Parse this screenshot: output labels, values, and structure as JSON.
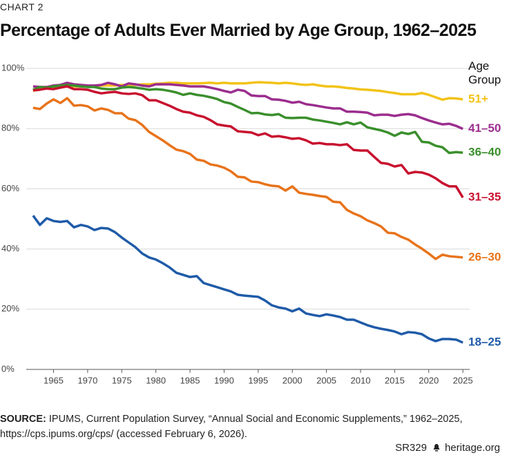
{
  "notes": {
    "kicker": "CHART 2",
    "source_label": "SOURCE:",
    "source_text": "IPUMS, Current Population Survey, “Annual Social and Economic Supplements,” 1962–2025, https://cps.ipums.org/cps/ (accessed February 6, 2026).",
    "code": "SR329",
    "site": "heritage.org"
  },
  "chart_data": {
    "type": "line",
    "title": "Percentage of Adults Ever Married by Age Group, 1962–2025",
    "legend_title": "Age Group",
    "x": [
      1962,
      1963,
      1964,
      1965,
      1966,
      1967,
      1968,
      1969,
      1970,
      1971,
      1972,
      1973,
      1974,
      1975,
      1976,
      1977,
      1978,
      1979,
      1980,
      1981,
      1982,
      1983,
      1984,
      1985,
      1986,
      1987,
      1988,
      1989,
      1990,
      1991,
      1992,
      1993,
      1994,
      1995,
      1996,
      1997,
      1998,
      1999,
      2000,
      2001,
      2002,
      2003,
      2004,
      2005,
      2006,
      2007,
      2008,
      2009,
      2010,
      2011,
      2012,
      2013,
      2014,
      2015,
      2016,
      2017,
      2018,
      2019,
      2020,
      2021,
      2022,
      2023,
      2024,
      2025
    ],
    "xlim": [
      1961,
      2026
    ],
    "xticks": [
      1965,
      1970,
      1975,
      1980,
      1985,
      1990,
      1995,
      2000,
      2005,
      2010,
      2015,
      2020,
      2025
    ],
    "ylim": [
      0,
      100
    ],
    "yticks": [
      {
        "value": 0,
        "label": "0%"
      },
      {
        "value": 20,
        "label": "20%"
      },
      {
        "value": 40,
        "label": "40%"
      },
      {
        "value": 60,
        "label": "60%"
      },
      {
        "value": 80,
        "label": "80%"
      },
      {
        "value": 100,
        "label": "100%"
      }
    ],
    "grid": true,
    "series": [
      {
        "name": "51+",
        "color": "#f2c318",
        "values": [
          92.5,
          93.1,
          93.6,
          93.8,
          94.0,
          94.0,
          94.0,
          94.0,
          94.0,
          94.0,
          94.3,
          94.3,
          94.3,
          94.5,
          94.5,
          94.5,
          94.7,
          94.7,
          94.9,
          95.0,
          95.2,
          95.2,
          95.0,
          95.0,
          95.0,
          95.1,
          95.2,
          95.0,
          95.2,
          95.0,
          95.0,
          95.0,
          95.2,
          95.4,
          95.3,
          95.2,
          95.0,
          95.2,
          95.0,
          94.7,
          94.5,
          94.7,
          94.3,
          94.0,
          94.0,
          93.8,
          93.5,
          93.3,
          93.0,
          92.9,
          92.7,
          92.5,
          92.1,
          91.8,
          91.4,
          91.4,
          91.4,
          91.8,
          91.2,
          90.4,
          89.6,
          90.1,
          90.0,
          89.7
        ]
      },
      {
        "name": "41–50",
        "color": "#9b2d8e",
        "values": [
          94.0,
          93.8,
          93.8,
          94.3,
          94.5,
          95.2,
          94.7,
          94.5,
          94.3,
          94.3,
          94.5,
          95.2,
          94.7,
          94.0,
          95.0,
          94.7,
          94.3,
          94.0,
          94.7,
          94.7,
          94.7,
          94.5,
          94.3,
          94.0,
          94.0,
          94.0,
          93.6,
          93.1,
          92.5,
          92.0,
          92.9,
          92.5,
          91.0,
          90.8,
          90.8,
          89.7,
          89.6,
          89.2,
          88.6,
          88.9,
          88.1,
          87.8,
          87.4,
          87.0,
          86.7,
          86.7,
          85.6,
          85.6,
          85.5,
          85.3,
          84.4,
          84.6,
          84.6,
          84.2,
          84.6,
          84.8,
          84.4,
          83.5,
          82.7,
          82.0,
          81.4,
          81.6,
          80.9,
          79.9
        ]
      },
      {
        "name": "36–40",
        "color": "#3a8f2c",
        "values": [
          92.9,
          93.8,
          93.6,
          94.0,
          94.3,
          94.5,
          94.3,
          94.0,
          93.8,
          93.8,
          93.3,
          93.1,
          93.1,
          93.6,
          93.8,
          93.6,
          93.3,
          92.9,
          93.1,
          92.9,
          92.5,
          92.0,
          91.2,
          91.7,
          91.2,
          90.9,
          90.4,
          89.8,
          88.8,
          88.3,
          87.2,
          86.2,
          85.1,
          85.2,
          84.7,
          84.5,
          84.8,
          83.6,
          83.5,
          83.6,
          83.6,
          83.0,
          82.7,
          82.3,
          81.9,
          81.4,
          82.1,
          81.4,
          82.0,
          80.4,
          79.9,
          79.4,
          78.7,
          77.6,
          78.7,
          78.2,
          78.9,
          75.6,
          75.4,
          74.3,
          73.8,
          71.9,
          72.2,
          72.0
        ]
      },
      {
        "name": "31–35",
        "color": "#c8102e",
        "values": [
          92.7,
          92.9,
          93.3,
          93.1,
          93.6,
          94.0,
          93.1,
          93.1,
          92.9,
          92.2,
          91.7,
          92.0,
          92.2,
          91.7,
          91.5,
          91.7,
          91.1,
          89.4,
          89.4,
          88.5,
          87.6,
          86.5,
          85.6,
          85.3,
          84.4,
          83.9,
          82.8,
          81.4,
          81.0,
          80.7,
          79.1,
          78.9,
          78.7,
          77.8,
          78.4,
          77.3,
          77.5,
          77.1,
          76.6,
          76.8,
          76.1,
          75.0,
          75.2,
          74.8,
          74.8,
          74.5,
          74.8,
          72.9,
          72.7,
          72.7,
          70.6,
          68.6,
          68.3,
          67.4,
          67.9,
          65.1,
          65.6,
          65.4,
          64.7,
          63.5,
          61.9,
          60.8,
          60.8,
          57.1
        ]
      },
      {
        "name": "26–30",
        "color": "#e8731a",
        "values": [
          86.9,
          86.5,
          88.3,
          89.7,
          88.5,
          90.1,
          87.6,
          87.8,
          87.4,
          86.0,
          86.7,
          86.2,
          85.1,
          85.1,
          83.3,
          82.8,
          81.2,
          78.9,
          77.5,
          76.1,
          74.5,
          73.0,
          72.5,
          71.6,
          69.7,
          69.3,
          68.1,
          67.7,
          67.0,
          65.8,
          64.0,
          63.8,
          62.4,
          62.2,
          61.5,
          61.0,
          60.8,
          59.4,
          60.8,
          58.7,
          58.3,
          58.0,
          57.6,
          57.3,
          55.7,
          55.5,
          53.0,
          51.8,
          50.9,
          49.5,
          48.6,
          47.5,
          45.4,
          45.2,
          44.0,
          43.1,
          41.5,
          40.1,
          38.5,
          36.7,
          38.1,
          37.6,
          37.4,
          37.2
        ]
      },
      {
        "name": "18–25",
        "color": "#1f5ba8",
        "values": [
          51.1,
          48.0,
          50.2,
          49.3,
          49.0,
          49.3,
          47.2,
          48.0,
          47.5,
          46.3,
          47.0,
          46.8,
          45.6,
          43.8,
          42.2,
          40.6,
          38.5,
          37.2,
          36.5,
          35.3,
          33.9,
          32.1,
          31.4,
          30.7,
          31.0,
          28.7,
          28.0,
          27.3,
          26.6,
          25.9,
          24.8,
          24.5,
          24.3,
          24.1,
          22.9,
          21.3,
          20.6,
          20.2,
          19.3,
          20.2,
          18.6,
          18.1,
          17.7,
          18.3,
          17.9,
          17.4,
          16.5,
          16.5,
          15.6,
          14.7,
          14.0,
          13.5,
          13.1,
          12.6,
          11.7,
          12.4,
          12.2,
          11.7,
          10.3,
          9.4,
          10.1,
          10.1,
          9.9,
          8.9
        ]
      }
    ]
  }
}
